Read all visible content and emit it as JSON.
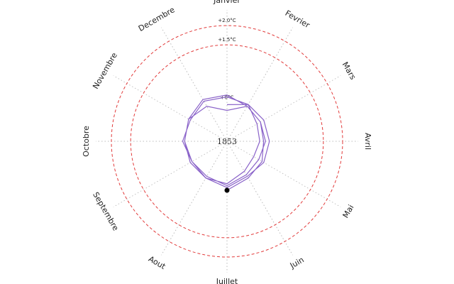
{
  "chart_data": {
    "type": "polar-line",
    "annotation": "1853",
    "categories": [
      "Janvier",
      "Fevrier",
      "Mars",
      "Avril",
      "Mai",
      "Juin",
      "Juillet",
      "Aout",
      "Septembre",
      "Octobre",
      "Novembre",
      "Decembre"
    ],
    "series": [
      {
        "color": "#8a63c9",
        "values": [
          -0.05,
          0.1,
          -0.1,
          -0.15,
          -0.2,
          -0.1,
          0.1,
          0.1,
          0.05,
          0.1,
          0.15,
          0.25
        ]
      },
      {
        "color": "#8a63c9",
        "values": [
          0.2,
          0.05,
          0.0,
          0.0,
          -0.05,
          0.0,
          0.15,
          0.05,
          0.05,
          0.15,
          0.1,
          0.2
        ]
      },
      {
        "color": "#8a63c9",
        "values": [
          0.15,
          0.1,
          0.1,
          0.1,
          0.1,
          0.05,
          0.2,
          0.1,
          0.1,
          0.1,
          0.15,
          0.05
        ]
      },
      {
        "color": "#8a63c9",
        "values": [
          -0.2,
          0.05,
          0.0,
          -0.05,
          0.05,
          0.1,
          0.27,
          null,
          null,
          null,
          null,
          null
        ]
      }
    ],
    "rlim": [
      -1,
      2
    ],
    "rticks": [
      {
        "value": 0,
        "label": "+0°C"
      },
      {
        "value": 1.5,
        "label": "+1.5°C"
      },
      {
        "value": 2.0,
        "label": "+2.0°C"
      }
    ],
    "circles": [
      1.5,
      2.0
    ],
    "circle_color": "#e23b3b",
    "grid": true
  }
}
